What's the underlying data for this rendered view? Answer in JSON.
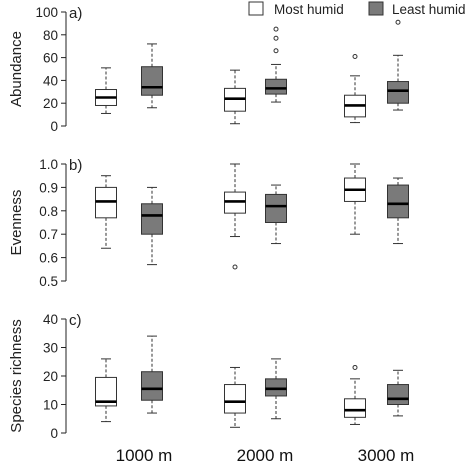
{
  "colors": {
    "most_humid": "#ffffff",
    "least_humid": "#7a7a7a",
    "stroke": "#333333",
    "axis": "#222222"
  },
  "legend": [
    {
      "label": "Most humid",
      "color": "#ffffff"
    },
    {
      "label": "Least humid",
      "color": "#7a7a7a"
    }
  ],
  "categories": [
    "1000 m",
    "2000 m",
    "3000 m"
  ],
  "chart_data": [
    {
      "type": "box",
      "panel_label": "a)",
      "ylabel": "Abundance",
      "ylim": [
        0,
        100
      ],
      "yticks": [
        0,
        20,
        40,
        60,
        80,
        100
      ],
      "categories": [
        "1000 m",
        "2000 m",
        "3000 m"
      ],
      "series": [
        {
          "name": "Most humid",
          "boxes": [
            {
              "min": 11,
              "q1": 18,
              "median": 25,
              "q3": 32,
              "max": 51,
              "outliers": []
            },
            {
              "min": 2,
              "q1": 13,
              "median": 24,
              "q3": 33,
              "max": 49,
              "outliers": []
            },
            {
              "min": 3,
              "q1": 8,
              "median": 18,
              "q3": 27,
              "max": 44,
              "outliers": [
                61
              ]
            }
          ]
        },
        {
          "name": "Least humid",
          "boxes": [
            {
              "min": 16,
              "q1": 27,
              "median": 34,
              "q3": 52,
              "max": 72,
              "outliers": []
            },
            {
              "min": 21,
              "q1": 28,
              "median": 33,
              "q3": 41,
              "max": 54,
              "outliers": [
                66,
                77,
                85
              ]
            },
            {
              "min": 14,
              "q1": 20,
              "median": 31,
              "q3": 39,
              "max": 62,
              "outliers": [
                91
              ]
            }
          ]
        }
      ]
    },
    {
      "type": "box",
      "panel_label": "b)",
      "ylabel": "Evenness",
      "ylim": [
        0.5,
        1.0
      ],
      "yticks": [
        0.5,
        0.6,
        0.7,
        0.8,
        0.9,
        1.0
      ],
      "categories": [
        "1000 m",
        "2000 m",
        "3000 m"
      ],
      "series": [
        {
          "name": "Most humid",
          "boxes": [
            {
              "min": 0.64,
              "q1": 0.77,
              "median": 0.84,
              "q3": 0.9,
              "max": 0.95,
              "outliers": []
            },
            {
              "min": 0.69,
              "q1": 0.79,
              "median": 0.84,
              "q3": 0.88,
              "max": 1.0,
              "outliers": [
                0.56
              ]
            },
            {
              "min": 0.7,
              "q1": 0.84,
              "median": 0.89,
              "q3": 0.94,
              "max": 1.0,
              "outliers": []
            }
          ]
        },
        {
          "name": "Least humid",
          "boxes": [
            {
              "min": 0.57,
              "q1": 0.7,
              "median": 0.78,
              "q3": 0.83,
              "max": 0.9,
              "outliers": []
            },
            {
              "min": 0.66,
              "q1": 0.75,
              "median": 0.82,
              "q3": 0.87,
              "max": 0.91,
              "outliers": []
            },
            {
              "min": 0.66,
              "q1": 0.77,
              "median": 0.83,
              "q3": 0.91,
              "max": 0.94,
              "outliers": []
            }
          ]
        }
      ]
    },
    {
      "type": "box",
      "panel_label": "c)",
      "ylabel": "Species richness",
      "ylim": [
        0,
        40
      ],
      "yticks": [
        0,
        10,
        20,
        30,
        40
      ],
      "categories": [
        "1000 m",
        "2000 m",
        "3000 m"
      ],
      "series": [
        {
          "name": "Most humid",
          "boxes": [
            {
              "min": 4,
              "q1": 9.5,
              "median": 11,
              "q3": 19.5,
              "max": 26,
              "outliers": []
            },
            {
              "min": 2,
              "q1": 7,
              "median": 11,
              "q3": 17,
              "max": 23,
              "outliers": []
            },
            {
              "min": 3,
              "q1": 5.5,
              "median": 8,
              "q3": 12,
              "max": 19,
              "outliers": [
                23
              ]
            }
          ]
        },
        {
          "name": "Least humid",
          "boxes": [
            {
              "min": 7,
              "q1": 11.5,
              "median": 15.5,
              "q3": 21.5,
              "max": 34,
              "outliers": []
            },
            {
              "min": 5,
              "q1": 13,
              "median": 15.5,
              "q3": 19,
              "max": 26,
              "outliers": []
            },
            {
              "min": 6,
              "q1": 10,
              "median": 12,
              "q3": 17,
              "max": 22,
              "outliers": []
            }
          ]
        }
      ]
    }
  ]
}
